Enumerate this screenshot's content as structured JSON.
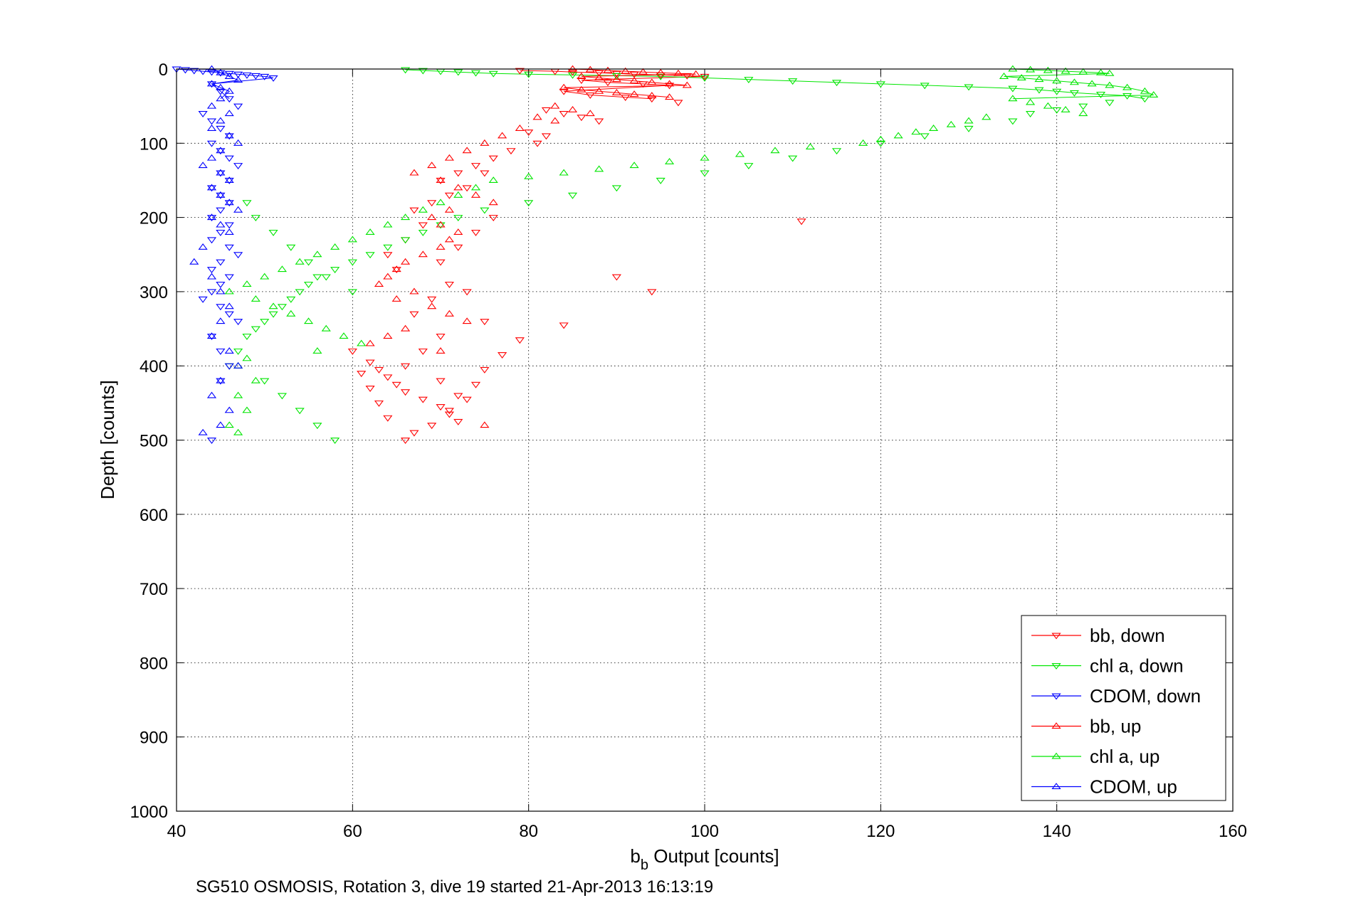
{
  "chart_data": {
    "type": "scatter",
    "title": "",
    "xlabel_main": "b",
    "xlabel_sub": "b",
    "xlabel_rest": " Output [counts]",
    "ylabel": "Depth [counts]",
    "caption": "SG510 OSMOSIS, Rotation 3, dive 19 started 21-Apr-2013 16:13:19",
    "xlim": [
      40,
      160
    ],
    "ylim": [
      0,
      1000
    ],
    "y_reversed": true,
    "grid": true,
    "legend_position": "bottom-right",
    "x_ticks": [
      "40",
      "60",
      "80",
      "100",
      "120",
      "140",
      "160"
    ],
    "y_ticks": [
      "0",
      "100",
      "200",
      "300",
      "400",
      "500",
      "600",
      "700",
      "800",
      "900",
      "1000"
    ],
    "series": [
      {
        "name": "bb, down",
        "color": "#ff0000",
        "marker": "triangle-down",
        "x": [
          79,
          83,
          85,
          88,
          90,
          92,
          95,
          98,
          100,
          86,
          89,
          93,
          96,
          84,
          87,
          91,
          94,
          97,
          82,
          84,
          86,
          88,
          80,
          82,
          81,
          78,
          76,
          74,
          72,
          70,
          75,
          73,
          71,
          69,
          67,
          68,
          66,
          64,
          65,
          70,
          72,
          74,
          76,
          71,
          69,
          67,
          73,
          75,
          70,
          68,
          66,
          70,
          72,
          71,
          69,
          67,
          66,
          64,
          63,
          62,
          61,
          60,
          62,
          63,
          64,
          65,
          66,
          68,
          70,
          71,
          72,
          73,
          74,
          75,
          77,
          79,
          84,
          111,
          90,
          94
        ],
        "y": [
          2,
          3,
          4,
          5,
          6,
          7,
          8,
          9,
          10,
          15,
          18,
          20,
          22,
          30,
          35,
          38,
          40,
          45,
          55,
          60,
          65,
          70,
          85,
          90,
          100,
          110,
          120,
          130,
          140,
          150,
          140,
          160,
          170,
          180,
          190,
          210,
          230,
          250,
          270,
          260,
          240,
          220,
          200,
          290,
          310,
          330,
          300,
          340,
          360,
          380,
          400,
          420,
          440,
          460,
          480,
          490,
          500,
          470,
          450,
          430,
          410,
          380,
          395,
          405,
          415,
          425,
          435,
          445,
          455,
          465,
          475,
          445,
          425,
          405,
          385,
          365,
          345,
          205,
          280,
          300
        ],
        "y_unused": []
      },
      {
        "name": "chl a, down",
        "color": "#00e600",
        "marker": "triangle-down",
        "x": [
          66,
          68,
          70,
          72,
          74,
          76,
          80,
          85,
          90,
          95,
          100,
          105,
          110,
          115,
          120,
          125,
          130,
          135,
          138,
          140,
          142,
          145,
          148,
          150,
          146,
          143,
          140,
          137,
          135,
          130,
          125,
          120,
          115,
          110,
          105,
          100,
          95,
          90,
          85,
          80,
          75,
          72,
          70,
          68,
          66,
          64,
          62,
          60,
          58,
          56,
          55,
          54,
          53,
          52,
          51,
          50,
          49,
          48,
          47,
          46,
          50,
          52,
          54,
          56,
          58,
          60,
          57,
          55,
          53,
          51,
          49,
          48
        ],
        "y": [
          1,
          2,
          3,
          4,
          5,
          6,
          7,
          8,
          9,
          10,
          12,
          14,
          16,
          18,
          20,
          22,
          24,
          26,
          28,
          30,
          32,
          34,
          36,
          40,
          45,
          50,
          55,
          60,
          70,
          80,
          90,
          100,
          110,
          120,
          130,
          140,
          150,
          160,
          170,
          180,
          190,
          200,
          210,
          220,
          230,
          240,
          250,
          260,
          270,
          280,
          290,
          300,
          310,
          320,
          330,
          340,
          350,
          360,
          380,
          400,
          420,
          440,
          460,
          480,
          500,
          300,
          280,
          260,
          240,
          220,
          200,
          180
        ],
        "y_unused": []
      },
      {
        "name": "CDOM, down",
        "color": "#0000ff",
        "marker": "triangle-down",
        "x": [
          40,
          41,
          42,
          43,
          44,
          45,
          46,
          47,
          48,
          49,
          50,
          51,
          44,
          45,
          46,
          47,
          43,
          44,
          45,
          46,
          44,
          45,
          46,
          47,
          45,
          46,
          44,
          45,
          46,
          45,
          44,
          46,
          45,
          44,
          46,
          47,
          45,
          44,
          46,
          45,
          44,
          43,
          45,
          46,
          47,
          44,
          45,
          46,
          45,
          44
        ],
        "y": [
          0,
          1,
          2,
          3,
          4,
          5,
          6,
          7,
          8,
          9,
          10,
          12,
          20,
          30,
          40,
          50,
          60,
          70,
          80,
          90,
          100,
          110,
          120,
          130,
          140,
          150,
          160,
          170,
          180,
          190,
          200,
          210,
          220,
          230,
          240,
          250,
          260,
          270,
          280,
          290,
          300,
          310,
          320,
          330,
          340,
          360,
          380,
          400,
          420,
          500
        ],
        "y_unused": []
      },
      {
        "name": "bb, up",
        "color": "#ff0000",
        "marker": "triangle-up",
        "x": [
          85,
          87,
          89,
          91,
          93,
          95,
          97,
          99,
          86,
          88,
          90,
          92,
          94,
          96,
          98,
          84,
          86,
          88,
          90,
          92,
          94,
          96,
          83,
          85,
          87,
          81,
          83,
          79,
          77,
          75,
          73,
          71,
          69,
          67,
          70,
          72,
          74,
          76,
          71,
          69,
          70,
          72,
          71,
          70,
          68,
          66,
          65,
          64,
          63,
          67,
          65,
          69,
          71,
          73,
          66,
          64,
          62,
          70,
          75
        ],
        "y": [
          0,
          1,
          2,
          3,
          4,
          5,
          6,
          7,
          10,
          12,
          14,
          16,
          18,
          20,
          22,
          25,
          28,
          30,
          32,
          34,
          36,
          38,
          50,
          55,
          60,
          65,
          70,
          80,
          90,
          100,
          110,
          120,
          130,
          140,
          150,
          160,
          170,
          180,
          190,
          200,
          210,
          220,
          230,
          240,
          250,
          260,
          270,
          280,
          290,
          300,
          310,
          320,
          330,
          340,
          350,
          360,
          370,
          380,
          480
        ],
        "y_unused": []
      },
      {
        "name": "chl a, up",
        "color": "#00e600",
        "marker": "triangle-up",
        "x": [
          135,
          137,
          139,
          141,
          143,
          145,
          146,
          134,
          136,
          138,
          140,
          142,
          144,
          146,
          148,
          150,
          151,
          135,
          137,
          139,
          141,
          143,
          132,
          130,
          128,
          126,
          124,
          122,
          120,
          118,
          112,
          108,
          104,
          100,
          96,
          92,
          88,
          84,
          80,
          76,
          74,
          72,
          70,
          68,
          66,
          64,
          62,
          60,
          58,
          56,
          54,
          52,
          50,
          48,
          46,
          49,
          51,
          53,
          55,
          57,
          59,
          61,
          56,
          48,
          47,
          49,
          47,
          48,
          46,
          47
        ],
        "y": [
          0,
          1,
          2,
          3,
          4,
          5,
          6,
          10,
          12,
          14,
          16,
          18,
          20,
          22,
          25,
          30,
          35,
          40,
          45,
          50,
          55,
          60,
          65,
          70,
          75,
          80,
          85,
          90,
          95,
          100,
          105,
          110,
          115,
          120,
          125,
          130,
          135,
          140,
          145,
          150,
          160,
          170,
          180,
          190,
          200,
          210,
          220,
          230,
          240,
          250,
          260,
          270,
          280,
          290,
          300,
          310,
          320,
          330,
          340,
          350,
          360,
          370,
          380,
          390,
          400,
          420,
          440,
          460,
          480,
          490
        ],
        "y_unused": []
      },
      {
        "name": "CDOM, up",
        "color": "#0000ff",
        "marker": "triangle-up",
        "x": [
          44,
          45,
          46,
          47,
          44,
          45,
          46,
          45,
          44,
          46,
          45,
          44,
          46,
          47,
          45,
          44,
          43,
          45,
          46,
          44,
          45,
          46,
          47,
          44,
          45,
          46,
          43,
          42,
          44,
          45,
          46,
          45,
          44,
          46,
          47,
          45,
          44,
          46,
          45,
          43
        ],
        "y": [
          0,
          5,
          10,
          15,
          20,
          25,
          30,
          40,
          50,
          60,
          70,
          80,
          90,
          100,
          110,
          120,
          130,
          140,
          150,
          160,
          170,
          180,
          190,
          200,
          210,
          220,
          240,
          260,
          280,
          300,
          320,
          340,
          360,
          380,
          400,
          420,
          440,
          460,
          480,
          490
        ],
        "y_unused": []
      }
    ]
  }
}
